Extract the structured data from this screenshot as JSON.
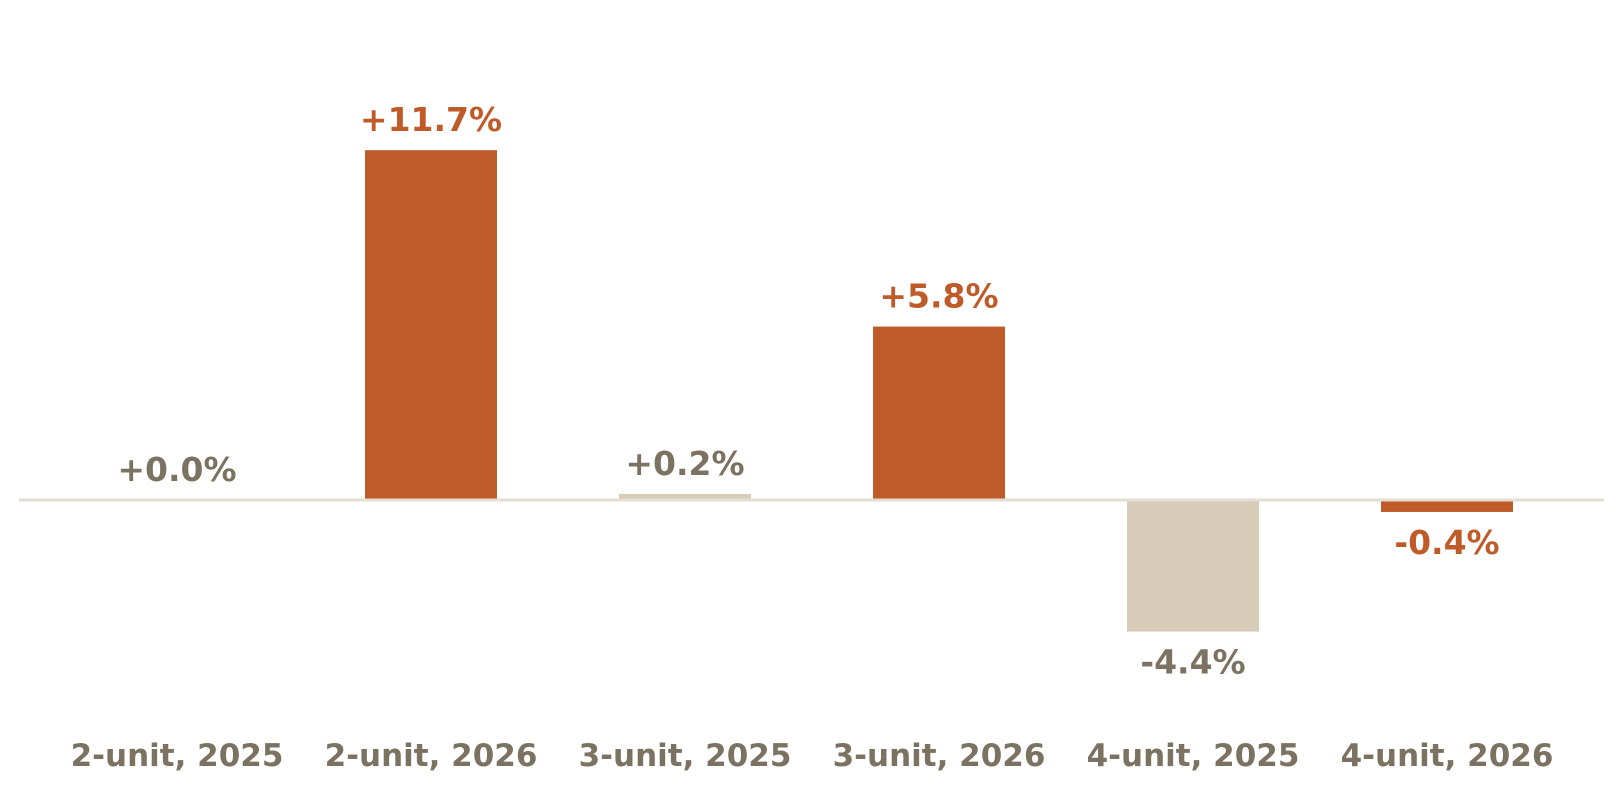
{
  "chart_data": {
    "type": "bar",
    "title": "",
    "xlabel": "",
    "ylabel": "",
    "categories": [
      "2-unit, 2025",
      "2-unit, 2026",
      "3-unit, 2025",
      "3-unit, 2026",
      "4-unit, 2025",
      "4-unit, 2026"
    ],
    "values": [
      0.0,
      11.7,
      0.2,
      5.8,
      -4.4,
      -0.4
    ],
    "value_labels": [
      "+0.0%",
      "+11.7%",
      "+0.2%",
      "+5.8%",
      "-4.4%",
      "-0.4%"
    ],
    "bar_colors": [
      "#d6ccb8",
      "#bf5b29",
      "#d6ccb8",
      "#bf5b29",
      "#d6ccb8",
      "#bf5b29"
    ],
    "label_colors": [
      "#7c7262",
      "#bf5b29",
      "#7c7262",
      "#bf5b29",
      "#7c7262",
      "#bf5b29"
    ],
    "tick_color": "#7c7262",
    "baseline_color": "#e3ddd2",
    "ylim": [
      -7,
      14
    ],
    "grid": false,
    "legend": "none"
  }
}
